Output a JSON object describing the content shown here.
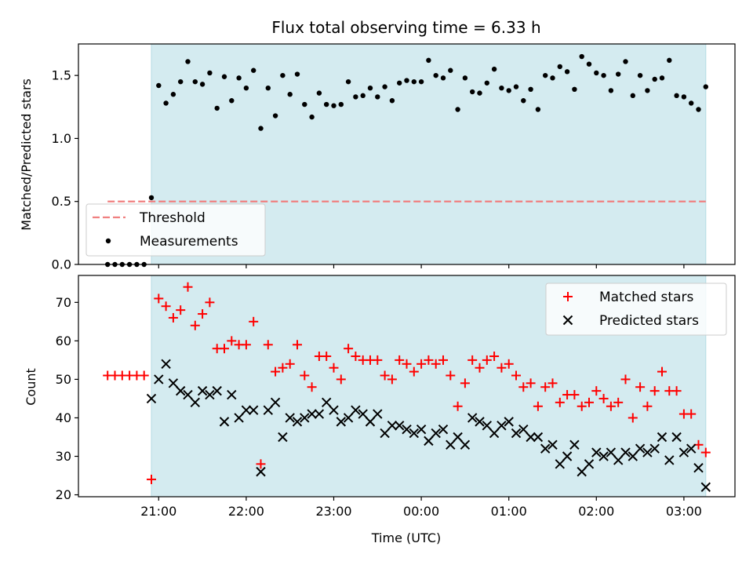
{
  "chart_data": [
    {
      "type": "scatter",
      "title": "Flux total observing time = 6.33 h",
      "xlabel": "",
      "ylabel": "Matched/Predicted stars",
      "ylim": [
        0,
        1.75
      ],
      "yticks": [
        "0.0",
        "0.5",
        "1.0",
        "1.5"
      ],
      "shaded_region": {
        "x_start": "20:55",
        "x_end": "03:15",
        "color": "#d4ebf0"
      },
      "threshold": {
        "name": "Threshold",
        "value": 0.5,
        "x_start": "20:25",
        "x_end": "03:15",
        "color": "#f08080",
        "style": "dashed"
      },
      "legend": {
        "placement": "lower-left",
        "entries": [
          "Threshold",
          "Measurements"
        ]
      },
      "series": [
        {
          "name": "Measurements",
          "marker": "dot",
          "color": "#000000",
          "points": [
            [
              "20:25",
              0.0
            ],
            [
              "20:30",
              0.0
            ],
            [
              "20:35",
              0.0
            ],
            [
              "20:40",
              0.0
            ],
            [
              "20:45",
              0.0
            ],
            [
              "20:50",
              0.0
            ],
            [
              "20:55",
              0.53
            ],
            [
              "21:00",
              1.42
            ],
            [
              "21:05",
              1.28
            ],
            [
              "21:10",
              1.35
            ],
            [
              "21:15",
              1.45
            ],
            [
              "21:20",
              1.61
            ],
            [
              "21:25",
              1.45
            ],
            [
              "21:30",
              1.43
            ],
            [
              "21:35",
              1.52
            ],
            [
              "21:40",
              1.24
            ],
            [
              "21:45",
              1.49
            ],
            [
              "21:50",
              1.3
            ],
            [
              "21:55",
              1.48
            ],
            [
              "22:00",
              1.4
            ],
            [
              "22:05",
              1.54
            ],
            [
              "22:10",
              1.08
            ],
            [
              "22:15",
              1.4
            ],
            [
              "22:20",
              1.18
            ],
            [
              "22:25",
              1.5
            ],
            [
              "22:30",
              1.35
            ],
            [
              "22:35",
              1.51
            ],
            [
              "22:40",
              1.27
            ],
            [
              "22:45",
              1.17
            ],
            [
              "22:50",
              1.36
            ],
            [
              "22:55",
              1.27
            ],
            [
              "23:00",
              1.26
            ],
            [
              "23:05",
              1.27
            ],
            [
              "23:10",
              1.45
            ],
            [
              "23:15",
              1.33
            ],
            [
              "23:20",
              1.34
            ],
            [
              "23:25",
              1.4
            ],
            [
              "23:30",
              1.33
            ],
            [
              "23:35",
              1.41
            ],
            [
              "23:40",
              1.3
            ],
            [
              "23:45",
              1.44
            ],
            [
              "23:50",
              1.46
            ],
            [
              "23:55",
              1.45
            ],
            [
              "00:00",
              1.45
            ],
            [
              "00:05",
              1.62
            ],
            [
              "00:10",
              1.5
            ],
            [
              "00:15",
              1.48
            ],
            [
              "00:20",
              1.54
            ],
            [
              "00:25",
              1.23
            ],
            [
              "00:30",
              1.48
            ],
            [
              "00:35",
              1.37
            ],
            [
              "00:40",
              1.36
            ],
            [
              "00:45",
              1.44
            ],
            [
              "00:50",
              1.55
            ],
            [
              "00:55",
              1.4
            ],
            [
              "01:00",
              1.38
            ],
            [
              "01:05",
              1.41
            ],
            [
              "01:10",
              1.3
            ],
            [
              "01:15",
              1.39
            ],
            [
              "01:20",
              1.23
            ],
            [
              "01:25",
              1.5
            ],
            [
              "01:30",
              1.48
            ],
            [
              "01:35",
              1.57
            ],
            [
              "01:40",
              1.53
            ],
            [
              "01:45",
              1.39
            ],
            [
              "01:50",
              1.65
            ],
            [
              "01:55",
              1.59
            ],
            [
              "02:00",
              1.52
            ],
            [
              "02:05",
              1.5
            ],
            [
              "02:10",
              1.38
            ],
            [
              "02:15",
              1.51
            ],
            [
              "02:20",
              1.61
            ],
            [
              "02:25",
              1.34
            ],
            [
              "02:30",
              1.5
            ],
            [
              "02:35",
              1.38
            ],
            [
              "02:40",
              1.47
            ],
            [
              "02:45",
              1.48
            ],
            [
              "02:50",
              1.62
            ],
            [
              "02:55",
              1.34
            ],
            [
              "03:00",
              1.33
            ],
            [
              "03:05",
              1.28
            ],
            [
              "03:10",
              1.23
            ],
            [
              "03:15",
              1.41
            ]
          ]
        }
      ]
    },
    {
      "type": "scatter",
      "title": "",
      "xlabel": "Time (UTC)",
      "ylabel": "Count",
      "ylim": [
        19.5,
        77
      ],
      "yticks": [
        "20",
        "30",
        "40",
        "50",
        "60",
        "70"
      ],
      "xticks": [
        "21:00",
        "22:00",
        "23:00",
        "00:00",
        "01:00",
        "02:00",
        "03:00"
      ],
      "shaded_region": {
        "x_start": "20:55",
        "x_end": "03:15",
        "color": "#d4ebf0"
      },
      "legend": {
        "placement": "top-right",
        "entries": [
          "Matched stars",
          "Predicted stars"
        ]
      },
      "series": [
        {
          "name": "Matched stars",
          "marker": "plus",
          "color": "#ff0000",
          "points": [
            [
              "20:25",
              51
            ],
            [
              "20:30",
              51
            ],
            [
              "20:35",
              51
            ],
            [
              "20:40",
              51
            ],
            [
              "20:45",
              51
            ],
            [
              "20:50",
              51
            ],
            [
              "20:55",
              24
            ],
            [
              "21:00",
              71
            ],
            [
              "21:05",
              69
            ],
            [
              "21:10",
              66
            ],
            [
              "21:15",
              68
            ],
            [
              "21:20",
              74
            ],
            [
              "21:25",
              64
            ],
            [
              "21:30",
              67
            ],
            [
              "21:35",
              70
            ],
            [
              "21:40",
              58
            ],
            [
              "21:45",
              58
            ],
            [
              "21:50",
              60
            ],
            [
              "21:55",
              59
            ],
            [
              "22:00",
              59
            ],
            [
              "22:05",
              65
            ],
            [
              "22:10",
              28
            ],
            [
              "22:15",
              59
            ],
            [
              "22:20",
              52
            ],
            [
              "22:25",
              53
            ],
            [
              "22:30",
              54
            ],
            [
              "22:35",
              59
            ],
            [
              "22:40",
              51
            ],
            [
              "22:45",
              48
            ],
            [
              "22:50",
              56
            ],
            [
              "22:55",
              56
            ],
            [
              "23:00",
              53
            ],
            [
              "23:05",
              50
            ],
            [
              "23:10",
              58
            ],
            [
              "23:15",
              56
            ],
            [
              "23:20",
              55
            ],
            [
              "23:25",
              55
            ],
            [
              "23:30",
              55
            ],
            [
              "23:35",
              51
            ],
            [
              "23:40",
              50
            ],
            [
              "23:45",
              55
            ],
            [
              "23:50",
              54
            ],
            [
              "23:55",
              52
            ],
            [
              "00:00",
              54
            ],
            [
              "00:05",
              55
            ],
            [
              "00:10",
              54
            ],
            [
              "00:15",
              55
            ],
            [
              "00:20",
              51
            ],
            [
              "00:25",
              43
            ],
            [
              "00:30",
              49
            ],
            [
              "00:35",
              55
            ],
            [
              "00:40",
              53
            ],
            [
              "00:45",
              55
            ],
            [
              "00:50",
              56
            ],
            [
              "00:55",
              53
            ],
            [
              "01:00",
              54
            ],
            [
              "01:05",
              51
            ],
            [
              "01:10",
              48
            ],
            [
              "01:15",
              49
            ],
            [
              "01:20",
              43
            ],
            [
              "01:25",
              48
            ],
            [
              "01:30",
              49
            ],
            [
              "01:35",
              44
            ],
            [
              "01:40",
              46
            ],
            [
              "01:45",
              46
            ],
            [
              "01:50",
              43
            ],
            [
              "01:55",
              44
            ],
            [
              "02:00",
              47
            ],
            [
              "02:05",
              45
            ],
            [
              "02:10",
              43
            ],
            [
              "02:15",
              44
            ],
            [
              "02:20",
              50
            ],
            [
              "02:25",
              40
            ],
            [
              "02:30",
              48
            ],
            [
              "02:35",
              43
            ],
            [
              "02:40",
              47
            ],
            [
              "02:45",
              52
            ],
            [
              "02:50",
              47
            ],
            [
              "02:55",
              47
            ],
            [
              "03:00",
              41
            ],
            [
              "03:05",
              41
            ],
            [
              "03:10",
              33
            ],
            [
              "03:15",
              31
            ]
          ]
        },
        {
          "name": "Predicted stars",
          "marker": "x",
          "color": "#000000",
          "points": [
            [
              "20:55",
              45
            ],
            [
              "21:00",
              50
            ],
            [
              "21:05",
              54
            ],
            [
              "21:10",
              49
            ],
            [
              "21:15",
              47
            ],
            [
              "21:20",
              46
            ],
            [
              "21:25",
              44
            ],
            [
              "21:30",
              47
            ],
            [
              "21:35",
              46
            ],
            [
              "21:40",
              47
            ],
            [
              "21:45",
              39
            ],
            [
              "21:50",
              46
            ],
            [
              "21:55",
              40
            ],
            [
              "22:00",
              42
            ],
            [
              "22:05",
              42
            ],
            [
              "22:10",
              26
            ],
            [
              "22:15",
              42
            ],
            [
              "22:20",
              44
            ],
            [
              "22:25",
              35
            ],
            [
              "22:30",
              40
            ],
            [
              "22:35",
              39
            ],
            [
              "22:40",
              40
            ],
            [
              "22:45",
              41
            ],
            [
              "22:50",
              41
            ],
            [
              "22:55",
              44
            ],
            [
              "23:00",
              42
            ],
            [
              "23:05",
              39
            ],
            [
              "23:10",
              40
            ],
            [
              "23:15",
              42
            ],
            [
              "23:20",
              41
            ],
            [
              "23:25",
              39
            ],
            [
              "23:30",
              41
            ],
            [
              "23:35",
              36
            ],
            [
              "23:40",
              38
            ],
            [
              "23:45",
              38
            ],
            [
              "23:50",
              37
            ],
            [
              "23:55",
              36
            ],
            [
              "00:00",
              37
            ],
            [
              "00:05",
              34
            ],
            [
              "00:10",
              36
            ],
            [
              "00:15",
              37
            ],
            [
              "00:20",
              33
            ],
            [
              "00:25",
              35
            ],
            [
              "00:30",
              33
            ],
            [
              "00:35",
              40
            ],
            [
              "00:40",
              39
            ],
            [
              "00:45",
              38
            ],
            [
              "00:50",
              36
            ],
            [
              "00:55",
              38
            ],
            [
              "01:00",
              39
            ],
            [
              "01:05",
              36
            ],
            [
              "01:10",
              37
            ],
            [
              "01:15",
              35
            ],
            [
              "01:20",
              35
            ],
            [
              "01:25",
              32
            ],
            [
              "01:30",
              33
            ],
            [
              "01:35",
              28
            ],
            [
              "01:40",
              30
            ],
            [
              "01:45",
              33
            ],
            [
              "01:50",
              26
            ],
            [
              "01:55",
              28
            ],
            [
              "02:00",
              31
            ],
            [
              "02:05",
              30
            ],
            [
              "02:10",
              31
            ],
            [
              "02:15",
              29
            ],
            [
              "02:20",
              31
            ],
            [
              "02:25",
              30
            ],
            [
              "02:30",
              32
            ],
            [
              "02:35",
              31
            ],
            [
              "02:40",
              32
            ],
            [
              "02:45",
              35
            ],
            [
              "02:50",
              29
            ],
            [
              "02:55",
              35
            ],
            [
              "03:00",
              31
            ],
            [
              "03:05",
              32
            ],
            [
              "03:10",
              27
            ],
            [
              "03:15",
              22
            ]
          ]
        }
      ]
    }
  ]
}
